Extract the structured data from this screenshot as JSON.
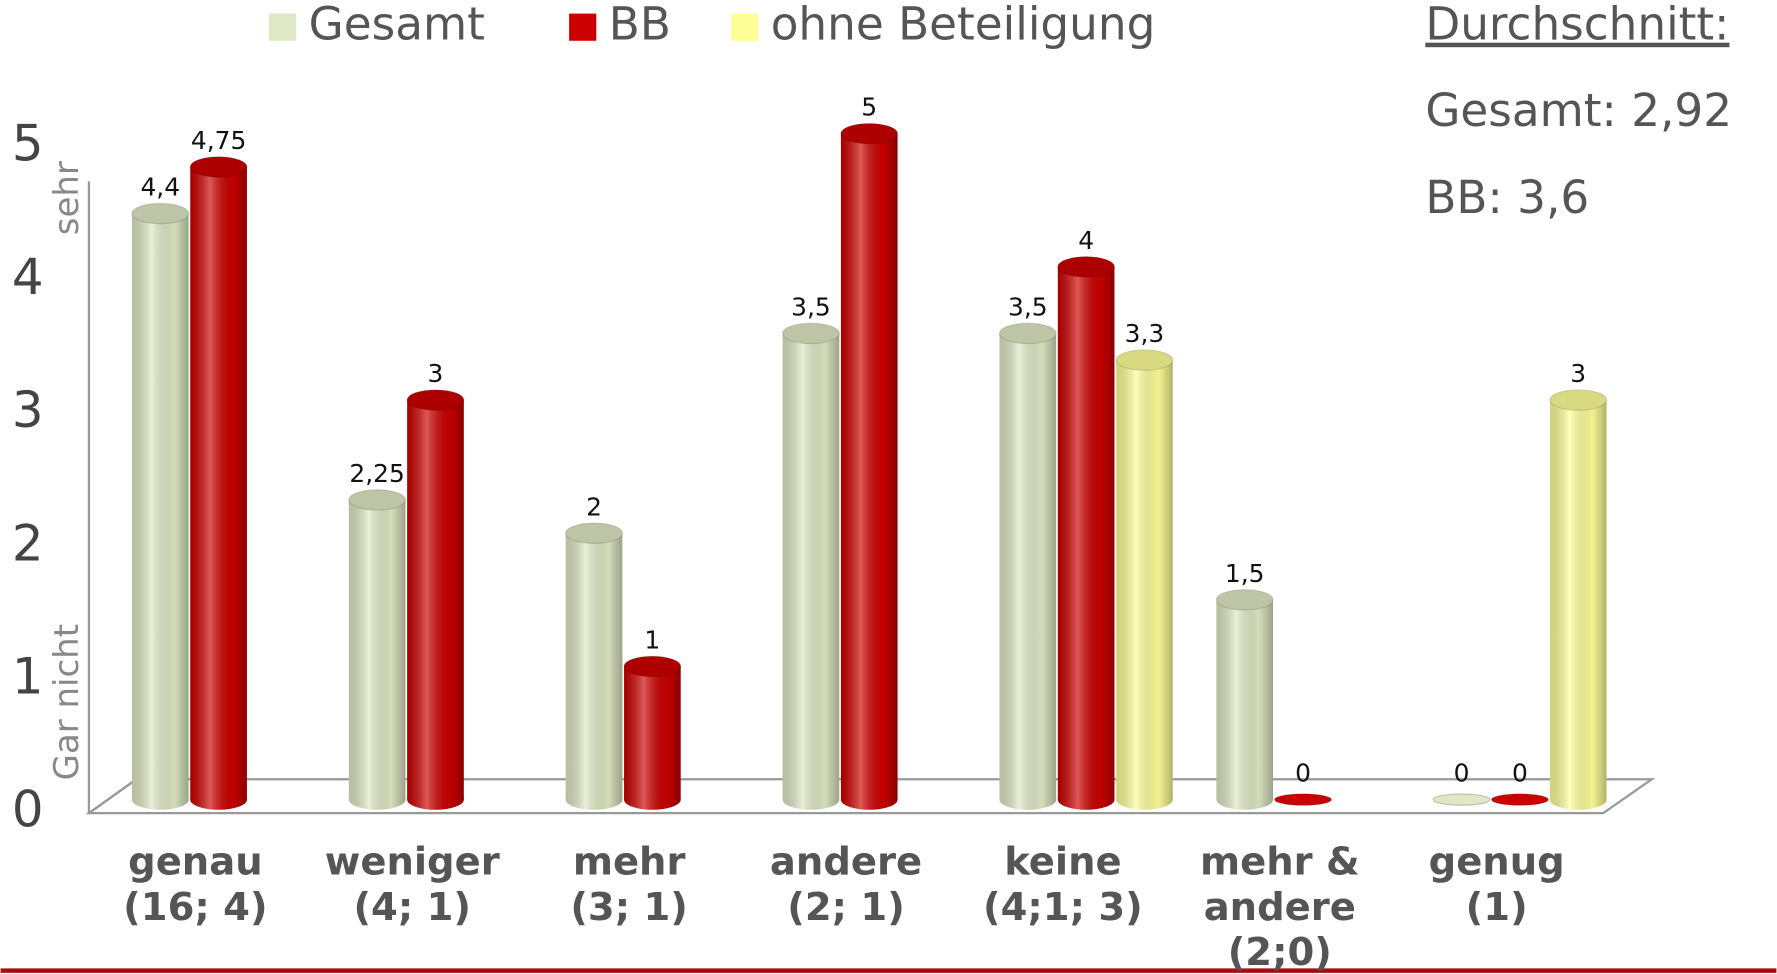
{
  "chart_data": {
    "type": "bar",
    "categories": [
      [
        "genau",
        "(16; 4)"
      ],
      [
        "weniger",
        "(4; 1)"
      ],
      [
        "mehr",
        "(3; 1)"
      ],
      [
        "andere",
        "(2; 1)"
      ],
      [
        "keine",
        "(4;1; 3)"
      ],
      [
        "mehr &",
        "andere",
        "(2;0)"
      ],
      [
        "genug",
        "(1)"
      ]
    ],
    "series": [
      {
        "name": "Gesamt",
        "color": "#dfe8c4",
        "values": [
          4.4,
          2.25,
          2,
          3.5,
          3.5,
          1.5,
          0
        ],
        "value_labels": [
          "4,4",
          "2,25",
          "2",
          "3,5",
          "3,5",
          "1,5",
          "0"
        ]
      },
      {
        "name": "BB",
        "color": "#cc0000",
        "values": [
          4.75,
          3,
          1,
          5,
          4,
          0,
          0
        ],
        "value_labels": [
          "4,75",
          "3",
          "1",
          "5",
          "4",
          "0",
          "0"
        ]
      },
      {
        "name": "ohne Beteiligung",
        "color": "#ffff99",
        "values": [
          null,
          null,
          null,
          null,
          3.3,
          null,
          3
        ],
        "value_labels": [
          null,
          null,
          null,
          null,
          "3,3",
          null,
          "3"
        ]
      }
    ],
    "ylim": [
      0,
      5
    ],
    "yticks": [
      0,
      1,
      2,
      3,
      4,
      5
    ],
    "axis_labels": {
      "top": "sehr",
      "bottom": "Gar nicht"
    },
    "averages": {
      "heading": "Durchschnitt:",
      "lines": [
        "Gesamt: 2,92",
        "BB: 3,6"
      ]
    }
  }
}
